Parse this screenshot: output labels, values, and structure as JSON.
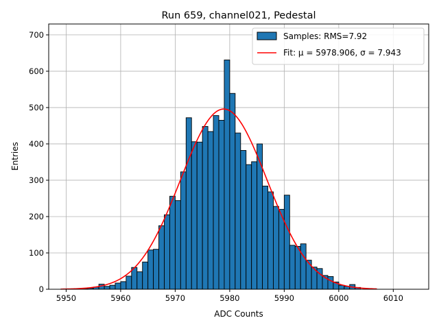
{
  "chart_data": {
    "type": "bar",
    "title": "Run 659, channel021, Pedestal",
    "xlabel": "ADC Counts",
    "ylabel": "Entries",
    "xlim": [
      5946.8,
      6016.5
    ],
    "ylim": [
      0,
      730
    ],
    "xticks": [
      5950,
      5960,
      5970,
      5980,
      5990,
      6000,
      6010
    ],
    "yticks": [
      0,
      100,
      200,
      300,
      400,
      500,
      600,
      700
    ],
    "grid": true,
    "legend_position": "top-right",
    "bin_width": 1,
    "series": [
      {
        "name": "Samples: RMS=7.92",
        "kind": "histogram",
        "color": "#1f77b4",
        "edge_color": "#000000",
        "bin_starts": [
          5953,
          5954,
          5955,
          5956,
          5957,
          5958,
          5959,
          5960,
          5961,
          5962,
          5963,
          5964,
          5965,
          5966,
          5967,
          5968,
          5969,
          5970,
          5971,
          5972,
          5973,
          5974,
          5975,
          5976,
          5977,
          5978,
          5979,
          5980,
          5981,
          5982,
          5983,
          5984,
          5985,
          5986,
          5987,
          5988,
          5989,
          5990,
          5991,
          5992,
          5993,
          5994,
          5995,
          5996,
          5997,
          5998,
          5999,
          6000,
          6001,
          6002,
          6003
        ],
        "values": [
          2,
          3,
          6,
          14,
          8,
          11,
          17,
          21,
          36,
          60,
          48,
          75,
          108,
          110,
          175,
          205,
          256,
          244,
          323,
          472,
          406,
          405,
          448,
          434,
          478,
          465,
          631,
          539,
          430,
          382,
          343,
          351,
          400,
          284,
          268,
          228,
          220,
          259,
          121,
          118,
          125,
          80,
          61,
          57,
          38,
          35,
          20,
          11,
          8,
          13,
          5
        ]
      },
      {
        "name": "Fit: μ = 5978.906, σ = 7.943",
        "kind": "gaussian_fit",
        "color": "#ff0000",
        "mu": 5978.906,
        "sigma": 7.943,
        "amplitude": 496,
        "x_range": [
          5949,
          6007
        ]
      }
    ]
  }
}
